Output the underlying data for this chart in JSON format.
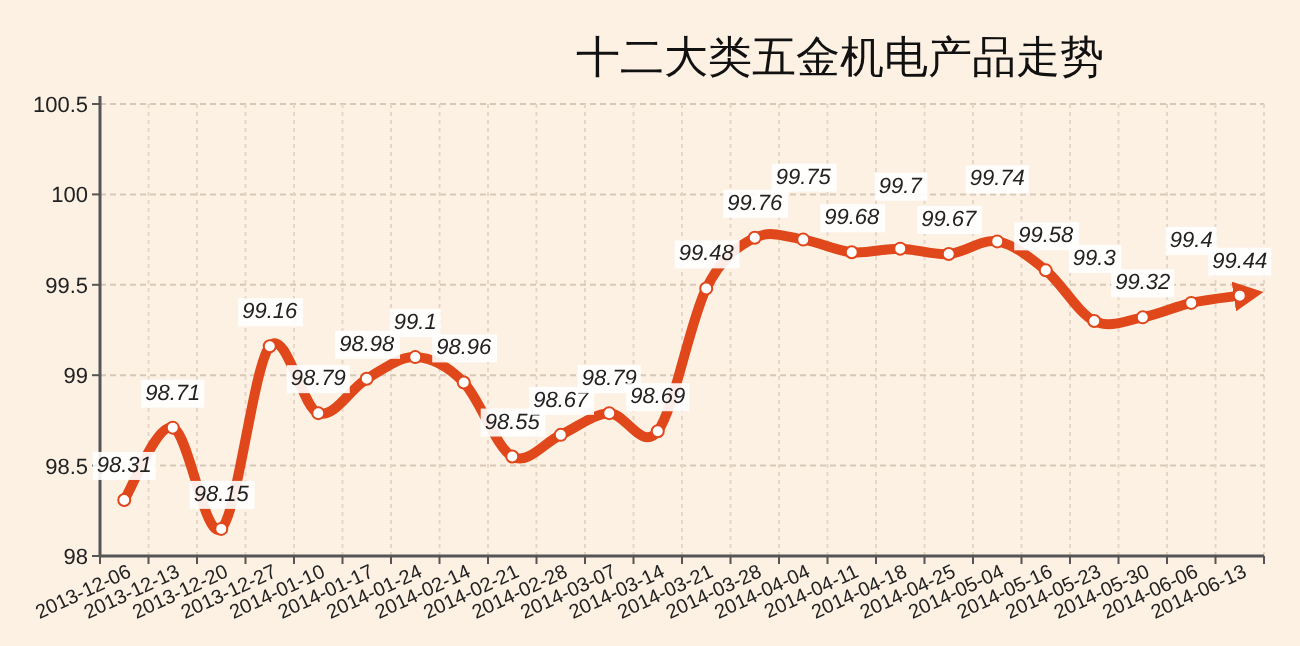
{
  "chart_data": {
    "type": "line",
    "title": "十二大类五金机电产品走势",
    "categories": [
      "2013-12-06",
      "2013-12-13",
      "2013-12-20",
      "2013-12-27",
      "2014-01-10",
      "2014-01-17",
      "2014-01-24",
      "2014-02-14",
      "2014-02-21",
      "2014-02-28",
      "2014-03-07",
      "2014-03-14",
      "2014-03-21",
      "2014-03-28",
      "2014-04-04",
      "2014-04-11",
      "2014-04-18",
      "2014-04-25",
      "2014-05-04",
      "2014-05-16",
      "2014-05-23",
      "2014-05-30",
      "2014-06-06",
      "2014-06-13"
    ],
    "values": [
      98.31,
      98.71,
      98.15,
      99.16,
      98.79,
      98.98,
      99.1,
      98.96,
      98.55,
      98.67,
      98.79,
      98.69,
      99.48,
      99.76,
      99.75,
      99.68,
      99.7,
      99.67,
      99.74,
      99.58,
      99.3,
      99.32,
      99.4,
      99.44
    ],
    "color": "#e0471a",
    "ylim": [
      98,
      100.5
    ],
    "yticks": [
      98,
      98.5,
      99,
      99.5,
      100,
      100.5
    ],
    "grid": true,
    "marker": "circle",
    "line_style": "solid",
    "data_labels": true
  }
}
